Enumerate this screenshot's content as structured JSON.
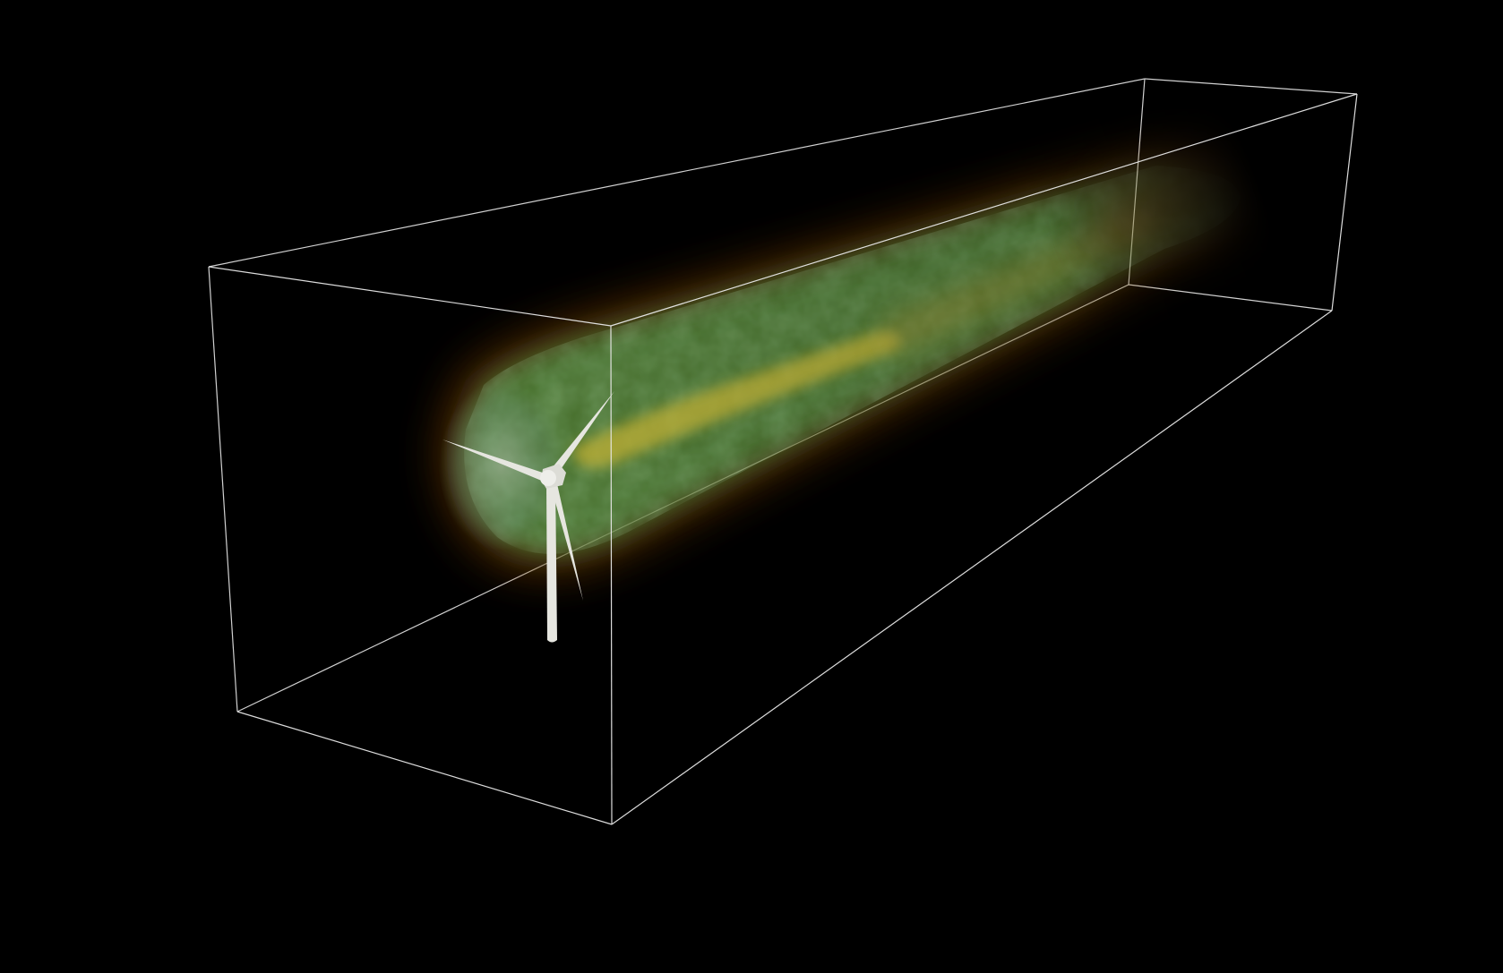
{
  "scene": {
    "background_color": "#000000",
    "subject": "wind-turbine-wake-volume-render",
    "bounding_box_color": "#e8e8e8",
    "turbine_color": "#e6e6e0",
    "wake_colors": {
      "outer_halo": "#8a4a10",
      "mid_shell": "#3a8a3a",
      "inner_core": "#c8b838",
      "near_rotor": "#9ab0a0",
      "far_tail": "#a06020"
    },
    "elements": [
      "domain-bounding-box",
      "wake-plume",
      "wind-turbine"
    ]
  }
}
